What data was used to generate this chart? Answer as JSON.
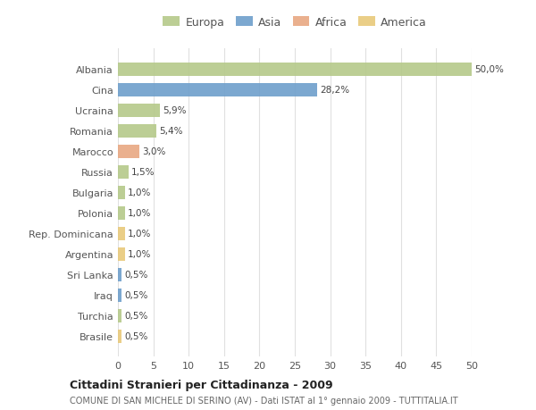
{
  "categories": [
    "Albania",
    "Cina",
    "Ucraina",
    "Romania",
    "Marocco",
    "Russia",
    "Bulgaria",
    "Polonia",
    "Rep. Dominicana",
    "Argentina",
    "Sri Lanka",
    "Iraq",
    "Turchia",
    "Brasile"
  ],
  "values": [
    50.0,
    28.2,
    5.9,
    5.4,
    3.0,
    1.5,
    1.0,
    1.0,
    1.0,
    1.0,
    0.5,
    0.5,
    0.5,
    0.5
  ],
  "labels": [
    "50,0%",
    "28,2%",
    "5,9%",
    "5,4%",
    "3,0%",
    "1,5%",
    "1,0%",
    "1,0%",
    "1,0%",
    "1,0%",
    "0,5%",
    "0,5%",
    "0,5%",
    "0,5%"
  ],
  "colors": [
    "#b5c98a",
    "#6e9fcb",
    "#b5c98a",
    "#b5c98a",
    "#e8a882",
    "#b5c98a",
    "#b5c98a",
    "#b5c98a",
    "#e8c97a",
    "#e8c97a",
    "#6e9fcb",
    "#6e9fcb",
    "#b5c98a",
    "#e8c97a"
  ],
  "legend_labels": [
    "Europa",
    "Asia",
    "Africa",
    "America"
  ],
  "legend_colors": [
    "#b5c98a",
    "#6e9fcb",
    "#e8a882",
    "#e8c97a"
  ],
  "title": "Cittadini Stranieri per Cittadinanza - 2009",
  "subtitle": "COMUNE DI SAN MICHELE DI SERINO (AV) - Dati ISTAT al 1° gennaio 2009 - TUTTITALIA.IT",
  "xlim": [
    0,
    50
  ],
  "xticks": [
    0,
    5,
    10,
    15,
    20,
    25,
    30,
    35,
    40,
    45,
    50
  ],
  "background_color": "#ffffff",
  "grid_color": "#e0e0e0"
}
